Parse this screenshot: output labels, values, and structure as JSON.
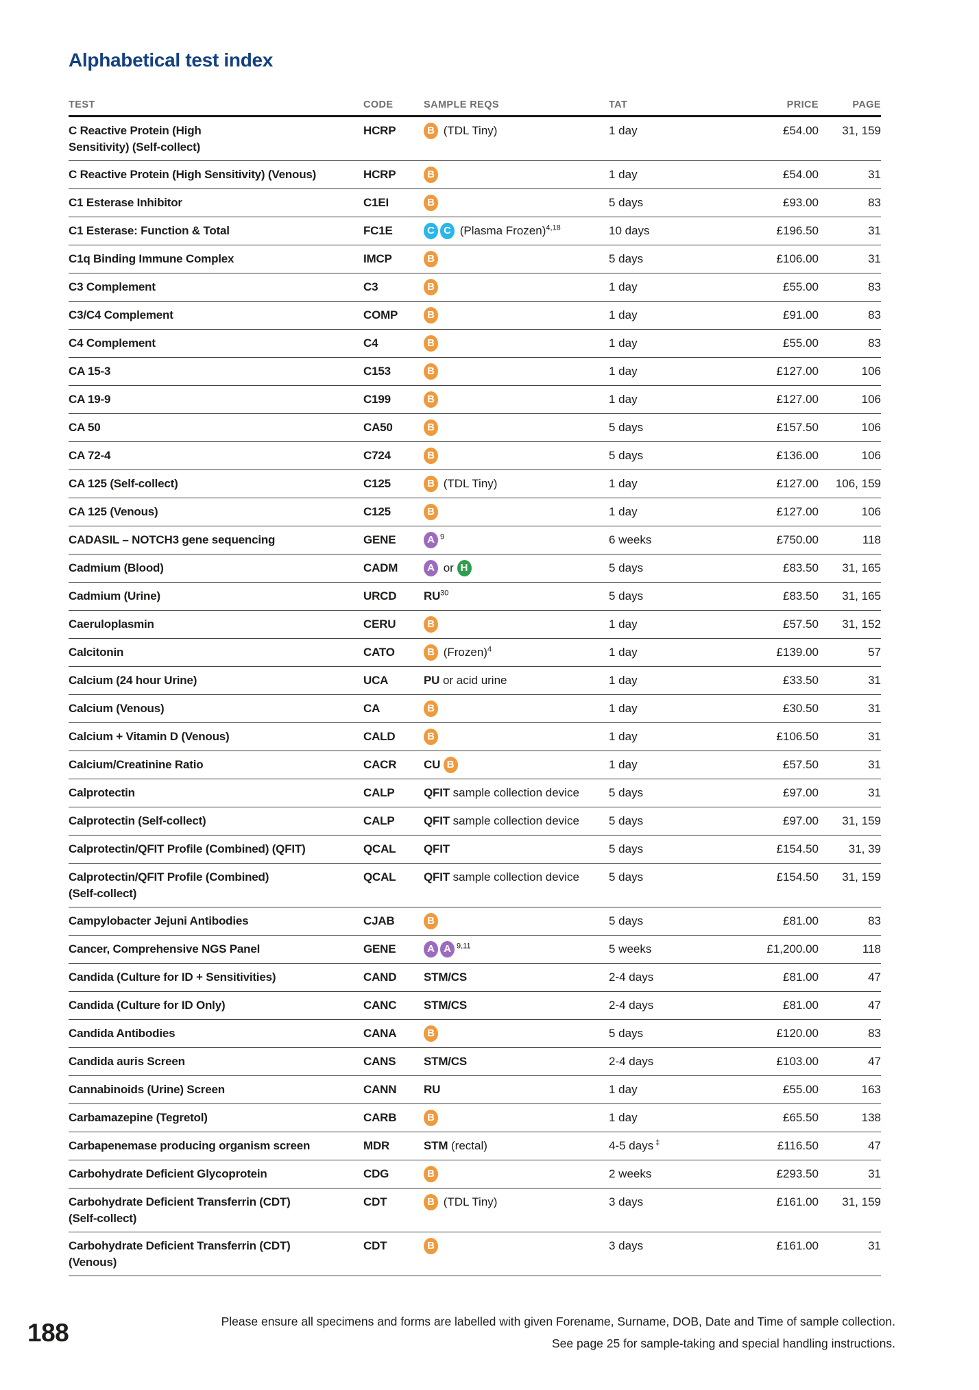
{
  "page": {
    "title": "Alphabetical test index",
    "page_number": "188",
    "footer_line1": "Please ensure all specimens and forms are labelled with given Forename, Surname, DOB, Date and Time of sample collection.",
    "footer_line2": "See page 25 for sample-taking and special handling instructions."
  },
  "icon_colors": {
    "B": "#ee9a3d",
    "C": "#29b6e8",
    "A": "#9c6bbf",
    "H": "#2f9e4f"
  },
  "title_color": "#14417f",
  "table": {
    "headers": [
      "TEST",
      "CODE",
      "SAMPLE REQS",
      "TAT",
      "PRICE",
      "PAGE"
    ],
    "rows": [
      {
        "test": "C Reactive Protein (High\nSensitivity) (Self-collect)",
        "code": "HCRP",
        "sample": [
          {
            "kind": "icon",
            "letter": "B"
          },
          {
            "kind": "text",
            "text": " (TDL Tiny)"
          }
        ],
        "tat": "1 day",
        "price": "£54.00",
        "pages": "31, 159"
      },
      {
        "test": "C Reactive Protein (High Sensitivity) (Venous)",
        "code": "HCRP",
        "sample": [
          {
            "kind": "icon",
            "letter": "B"
          }
        ],
        "tat": "1 day",
        "price": "£54.00",
        "pages": "31"
      },
      {
        "test": "C1 Esterase Inhibitor",
        "code": "C1EI",
        "sample": [
          {
            "kind": "icon",
            "letter": "B"
          }
        ],
        "tat": "5 days",
        "price": "£93.00",
        "pages": "83"
      },
      {
        "test": "C1 Esterase: Function & Total",
        "code": "FC1E",
        "sample": [
          {
            "kind": "icon",
            "letter": "C"
          },
          {
            "kind": "icon",
            "letter": "C"
          },
          {
            "kind": "text",
            "text": " (Plasma Frozen)"
          },
          {
            "kind": "sup",
            "text": "4,18"
          }
        ],
        "tat": "10 days",
        "price": "£196.50",
        "pages": "31"
      },
      {
        "test": "C1q Binding Immune Complex",
        "code": "IMCP",
        "sample": [
          {
            "kind": "icon",
            "letter": "B"
          }
        ],
        "tat": "5 days",
        "price": "£106.00",
        "pages": "31"
      },
      {
        "test": "C3 Complement",
        "code": "C3",
        "sample": [
          {
            "kind": "icon",
            "letter": "B"
          }
        ],
        "tat": "1 day",
        "price": "£55.00",
        "pages": "83"
      },
      {
        "test": "C3/C4 Complement",
        "code": "COMP",
        "sample": [
          {
            "kind": "icon",
            "letter": "B"
          }
        ],
        "tat": "1 day",
        "price": "£91.00",
        "pages": "83"
      },
      {
        "test": "C4 Complement",
        "code": "C4",
        "sample": [
          {
            "kind": "icon",
            "letter": "B"
          }
        ],
        "tat": "1 day",
        "price": "£55.00",
        "pages": "83"
      },
      {
        "test": "CA 15-3",
        "code": "C153",
        "sample": [
          {
            "kind": "icon",
            "letter": "B"
          }
        ],
        "tat": "1 day",
        "price": "£127.00",
        "pages": "106"
      },
      {
        "test": "CA 19-9",
        "code": "C199",
        "sample": [
          {
            "kind": "icon",
            "letter": "B"
          }
        ],
        "tat": "1 day",
        "price": "£127.00",
        "pages": "106"
      },
      {
        "test": "CA 50",
        "code": "CA50",
        "sample": [
          {
            "kind": "icon",
            "letter": "B"
          }
        ],
        "tat": "5 days",
        "price": "£157.50",
        "pages": "106"
      },
      {
        "test": "CA 72-4",
        "code": "C724",
        "sample": [
          {
            "kind": "icon",
            "letter": "B"
          }
        ],
        "tat": "5 days",
        "price": "£136.00",
        "pages": "106"
      },
      {
        "test": "CA 125 (Self-collect)",
        "code": "C125",
        "sample": [
          {
            "kind": "icon",
            "letter": "B"
          },
          {
            "kind": "text",
            "text": " (TDL Tiny)"
          }
        ],
        "tat": "1 day",
        "price": "£127.00",
        "pages": "106, 159"
      },
      {
        "test": "CA 125 (Venous)",
        "code": "C125",
        "sample": [
          {
            "kind": "icon",
            "letter": "B"
          }
        ],
        "tat": "1 day",
        "price": "£127.00",
        "pages": "106"
      },
      {
        "test": "CADASIL – NOTCH3 gene sequencing",
        "code": "GENE",
        "sample": [
          {
            "kind": "icon",
            "letter": "A"
          },
          {
            "kind": "sup",
            "text": "9"
          }
        ],
        "tat": "6 weeks",
        "price": "£750.00",
        "pages": "118"
      },
      {
        "test": "Cadmium (Blood)",
        "code": "CADM",
        "sample": [
          {
            "kind": "icon",
            "letter": "A"
          },
          {
            "kind": "text",
            "text": " or "
          },
          {
            "kind": "icon",
            "letter": "H"
          }
        ],
        "tat": "5 days",
        "price": "£83.50",
        "pages": "31, 165"
      },
      {
        "test": "Cadmium (Urine)",
        "code": "URCD",
        "sample": [
          {
            "kind": "bold",
            "text": "RU"
          },
          {
            "kind": "sup",
            "text": "30"
          }
        ],
        "tat": "5 days",
        "price": "£83.50",
        "pages": "31, 165"
      },
      {
        "test": "Caeruloplasmin",
        "code": "CERU",
        "sample": [
          {
            "kind": "icon",
            "letter": "B"
          }
        ],
        "tat": "1 day",
        "price": "£57.50",
        "pages": "31, 152"
      },
      {
        "test": "Calcitonin",
        "code": "CATO",
        "sample": [
          {
            "kind": "icon",
            "letter": "B"
          },
          {
            "kind": "text",
            "text": " (Frozen)"
          },
          {
            "kind": "sup",
            "text": "4"
          }
        ],
        "tat": "1 day",
        "price": "£139.00",
        "pages": "57"
      },
      {
        "test": "Calcium (24 hour Urine)",
        "code": "UCA",
        "sample": [
          {
            "kind": "bold",
            "text": "PU"
          },
          {
            "kind": "text",
            "text": " or acid urine"
          }
        ],
        "tat": "1 day",
        "price": "£33.50",
        "pages": "31"
      },
      {
        "test": "Calcium (Venous)",
        "code": "CA",
        "sample": [
          {
            "kind": "icon",
            "letter": "B"
          }
        ],
        "tat": "1 day",
        "price": "£30.50",
        "pages": "31"
      },
      {
        "test": "Calcium + Vitamin D (Venous)",
        "code": "CALD",
        "sample": [
          {
            "kind": "icon",
            "letter": "B"
          }
        ],
        "tat": "1 day",
        "price": "£106.50",
        "pages": "31"
      },
      {
        "test": "Calcium/Creatinine Ratio",
        "code": "CACR",
        "sample": [
          {
            "kind": "bold",
            "text": "CU "
          },
          {
            "kind": "icon",
            "letter": "B"
          }
        ],
        "tat": "1 day",
        "price": "£57.50",
        "pages": "31"
      },
      {
        "test": "Calprotectin",
        "code": "CALP",
        "sample": [
          {
            "kind": "bold",
            "text": "QFIT"
          },
          {
            "kind": "text",
            "text": " sample collection device"
          }
        ],
        "tat": "5 days",
        "price": "£97.00",
        "pages": "31"
      },
      {
        "test": "Calprotectin (Self-collect)",
        "code": "CALP",
        "sample": [
          {
            "kind": "bold",
            "text": "QFIT"
          },
          {
            "kind": "text",
            "text": " sample collection device"
          }
        ],
        "tat": "5 days",
        "price": "£97.00",
        "pages": "31, 159"
      },
      {
        "test": "Calprotectin/QFIT Profile (Combined) (QFIT)",
        "code": "QCAL",
        "sample": [
          {
            "kind": "bold",
            "text": "QFIT"
          }
        ],
        "tat": "5 days",
        "price": "£154.50",
        "pages": "31, 39"
      },
      {
        "test": "Calprotectin/QFIT Profile (Combined)\n(Self-collect)",
        "code": "QCAL",
        "sample": [
          {
            "kind": "bold",
            "text": "QFIT"
          },
          {
            "kind": "text",
            "text": " sample collection device"
          }
        ],
        "tat": "5 days",
        "price": "£154.50",
        "pages": "31, 159"
      },
      {
        "test": "Campylobacter Jejuni Antibodies",
        "code": "CJAB",
        "sample": [
          {
            "kind": "icon",
            "letter": "B"
          }
        ],
        "tat": "5 days",
        "price": "£81.00",
        "pages": "83"
      },
      {
        "test": "Cancer, Comprehensive NGS Panel",
        "code": "GENE",
        "sample": [
          {
            "kind": "icon",
            "letter": "A"
          },
          {
            "kind": "icon",
            "letter": "A"
          },
          {
            "kind": "sup",
            "text": "9,11"
          }
        ],
        "tat": "5 weeks",
        "price": "£1,200.00",
        "pages": "118"
      },
      {
        "test": "Candida (Culture for ID + Sensitivities)",
        "code": "CAND",
        "sample": [
          {
            "kind": "bold",
            "text": "STM/CS"
          }
        ],
        "tat": "2-4 days",
        "price": "£81.00",
        "pages": "47"
      },
      {
        "test": "Candida (Culture for ID Only)",
        "code": "CANC",
        "sample": [
          {
            "kind": "bold",
            "text": "STM/CS"
          }
        ],
        "tat": "2-4 days",
        "price": "£81.00",
        "pages": "47"
      },
      {
        "test": "Candida Antibodies",
        "code": "CANA",
        "sample": [
          {
            "kind": "icon",
            "letter": "B"
          }
        ],
        "tat": "5 days",
        "price": "£120.00",
        "pages": "83"
      },
      {
        "test": "Candida auris Screen",
        "code": "CANS",
        "sample": [
          {
            "kind": "bold",
            "text": "STM/CS"
          }
        ],
        "tat": "2-4 days",
        "price": "£103.00",
        "pages": "47"
      },
      {
        "test": "Cannabinoids (Urine) Screen",
        "code": "CANN",
        "sample": [
          {
            "kind": "bold",
            "text": "RU"
          }
        ],
        "tat": "1 day",
        "price": "£55.00",
        "pages": "163"
      },
      {
        "test": "Carbamazepine (Tegretol)",
        "code": "CARB",
        "sample": [
          {
            "kind": "icon",
            "letter": "B"
          }
        ],
        "tat": "1 day",
        "price": "£65.50",
        "pages": "138"
      },
      {
        "test": "Carbapenemase producing organism screen",
        "code": "MDR",
        "sample": [
          {
            "kind": "bold",
            "text": "STM"
          },
          {
            "kind": "text",
            "text": " (rectal)"
          }
        ],
        "tat": "4-5 days",
        "tat_sup": "‡",
        "price": "£116.50",
        "pages": "47"
      },
      {
        "test": "Carbohydrate Deficient Glycoprotein",
        "code": "CDG",
        "sample": [
          {
            "kind": "icon",
            "letter": "B"
          }
        ],
        "tat": "2 weeks",
        "price": "£293.50",
        "pages": "31"
      },
      {
        "test": "Carbohydrate Deficient Transferrin (CDT)\n(Self-collect)",
        "code": "CDT",
        "sample": [
          {
            "kind": "icon",
            "letter": "B"
          },
          {
            "kind": "text",
            "text": " (TDL Tiny)"
          }
        ],
        "tat": "3 days",
        "price": "£161.00",
        "pages": "31, 159"
      },
      {
        "test": "Carbohydrate Deficient Transferrin (CDT)\n(Venous)",
        "code": "CDT",
        "sample": [
          {
            "kind": "icon",
            "letter": "B"
          }
        ],
        "tat": "3 days",
        "price": "£161.00",
        "pages": "31"
      }
    ]
  }
}
